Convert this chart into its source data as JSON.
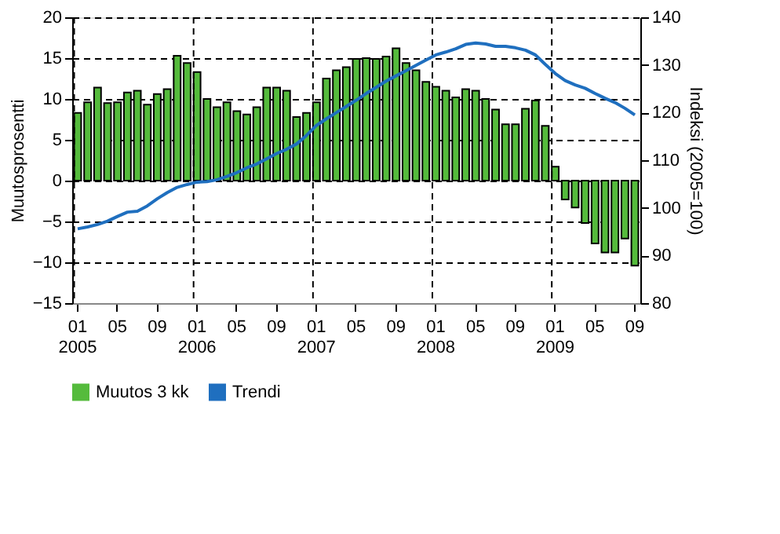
{
  "chart_data": {
    "type": "bar",
    "ylabel": "Muutosprosentti",
    "y2label": "Indeksi (2005=100)",
    "categories": [
      "01\n2005",
      null,
      null,
      null,
      "05",
      null,
      null,
      null,
      "09",
      null,
      null,
      null,
      "01\n2006",
      null,
      null,
      null,
      "05",
      null,
      null,
      null,
      "09",
      null,
      null,
      null,
      "01\n2007",
      null,
      null,
      null,
      "05",
      null,
      null,
      null,
      "09",
      null,
      null,
      null,
      "01\n2008",
      null,
      null,
      null,
      "05",
      null,
      null,
      null,
      "09",
      null,
      null,
      null,
      "01\n2009",
      null,
      null,
      null,
      "05",
      null,
      null,
      null,
      "09"
    ],
    "series": [
      {
        "name": "Muutos 3 kk",
        "color": "#55bb3c",
        "values": [
          8.3,
          9.6,
          11.4,
          9.5,
          9.6,
          10.8,
          11.0,
          9.3,
          10.6,
          11.2,
          15.3,
          14.4,
          13.3,
          10.0,
          9.0,
          9.6,
          8.5,
          8.1,
          9.0,
          11.4,
          11.4,
          11.0,
          7.8,
          8.3,
          9.6,
          12.5,
          13.5,
          13.9,
          14.9,
          15.0,
          14.9,
          15.2,
          16.2,
          14.4,
          13.5,
          12.1,
          11.5,
          11.0,
          10.2,
          11.2,
          11.0,
          10.0,
          8.7,
          6.9,
          6.9,
          8.8,
          9.8,
          6.7,
          1.7,
          -2.3,
          -3.3,
          -5.2,
          -7.7,
          -8.8,
          -8.8,
          -7.1,
          -10.4
        ]
      },
      {
        "name": "Trendi",
        "color": "#1f6fbf",
        "type": "line",
        "axis": "y2",
        "values": [
          95.6,
          96.0,
          96.5,
          97.2,
          98.2,
          99.1,
          99.3,
          100.4,
          101.9,
          103.2,
          104.3,
          104.9,
          105.4,
          105.5,
          105.9,
          106.6,
          107.4,
          108.4,
          109.2,
          110.3,
          111.4,
          112.3,
          113.4,
          115.2,
          117.3,
          118.7,
          120.0,
          121.3,
          122.6,
          124.0,
          125.3,
          126.6,
          127.7,
          128.8,
          129.9,
          131.0,
          132.1,
          132.7,
          133.4,
          134.3,
          134.6,
          134.4,
          133.9,
          133.9,
          133.6,
          133.1,
          132.1,
          130.1,
          128.2,
          126.7,
          125.8,
          125.1,
          124.0,
          123.0,
          122.1,
          120.9,
          119.5
        ]
      }
    ],
    "ylim": [
      -15,
      20
    ],
    "yticks": [
      -15,
      -10,
      -5,
      0,
      5,
      10,
      15,
      20
    ],
    "y2lim": [
      80,
      140
    ],
    "y2ticks": [
      80,
      90,
      100,
      110,
      120,
      130,
      140
    ],
    "grid": true,
    "legend": "bottom",
    "line_style": "solid",
    "marker": "none"
  }
}
